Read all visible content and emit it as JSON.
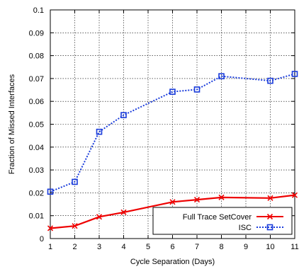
{
  "chart_data": {
    "type": "line",
    "title": "",
    "xlabel": "Cycle Separation (Days)",
    "ylabel": "Fraction of Missed Interfaces",
    "xlim": [
      1,
      11
    ],
    "ylim": [
      0,
      0.1
    ],
    "x_ticks": [
      1,
      2,
      3,
      4,
      5,
      6,
      7,
      8,
      9,
      10,
      11
    ],
    "y_ticks": [
      0,
      0.01,
      0.02,
      0.03,
      0.04,
      0.05,
      0.06,
      0.07,
      0.08,
      0.09,
      0.1
    ],
    "grid": true,
    "legend_position": "bottom-right",
    "series": [
      {
        "name": "Full Trace SetCover",
        "color": "#ee0000",
        "marker": "x",
        "line_style": "solid",
        "x": [
          1,
          2,
          3,
          4,
          6,
          7,
          8,
          10,
          11
        ],
        "y": [
          0.0045,
          0.0055,
          0.0095,
          0.0115,
          0.016,
          0.017,
          0.018,
          0.0177,
          0.019
        ]
      },
      {
        "name": "ISC",
        "color": "#1a3cdb",
        "marker": "square",
        "line_style": "dotted",
        "x": [
          1,
          2,
          3,
          4,
          6,
          7,
          8,
          10,
          11
        ],
        "y": [
          0.0205,
          0.0248,
          0.0467,
          0.054,
          0.0642,
          0.0652,
          0.071,
          0.069,
          0.072
        ]
      }
    ]
  }
}
